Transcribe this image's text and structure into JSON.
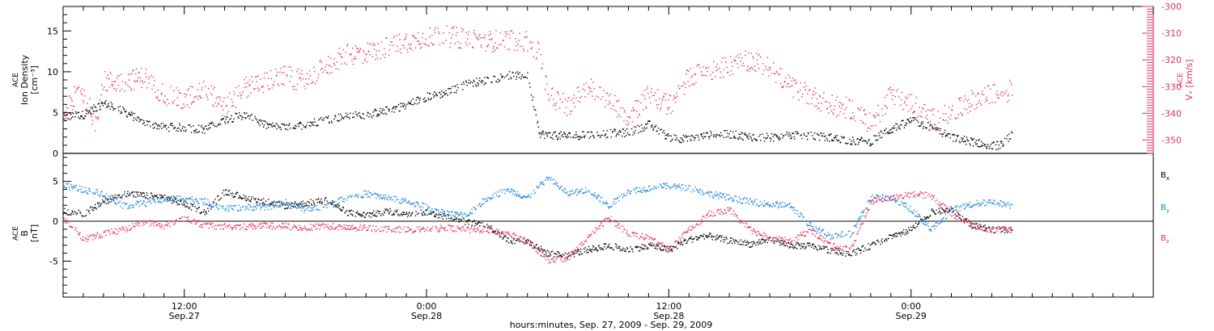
{
  "colors": {
    "black": "#000000",
    "pink": "#e8305f",
    "blue": "#1f86e0"
  },
  "x_axis": {
    "ticks": [
      {
        "hour": 12,
        "time": "12:00",
        "date": "Sep.27"
      },
      {
        "hour": 24,
        "time": "0:00",
        "date": "Sep.28"
      },
      {
        "hour": 36,
        "time": "12:00",
        "date": "Sep.28"
      },
      {
        "hour": 48,
        "time": "0:00",
        "date": "Sep.29"
      }
    ],
    "caption": "hours:minutes, Sep. 27, 2009 - Sep. 29, 2009",
    "range_hours": [
      6,
      60
    ]
  },
  "chart_data": [
    {
      "type": "scatter",
      "panel": "top",
      "ylabel_lines": [
        "ACE",
        "Ion Density",
        "[cm⁻³]"
      ],
      "ylim": [
        0,
        18
      ],
      "yticks": [
        0,
        5,
        10,
        15
      ],
      "y2label_lines": [
        "ACE",
        "Vₓ [km/s]"
      ],
      "y2lim": [
        -355,
        -300
      ],
      "y2ticks": [
        -350,
        -340,
        -330,
        -320,
        -310,
        -300
      ],
      "series": [
        {
          "name": "",
          "axis": "left",
          "color": "black",
          "points": [
            [
              6,
              4.5
            ],
            [
              7,
              4.8
            ],
            [
              8,
              6.2
            ],
            [
              9,
              5.2
            ],
            [
              10,
              3.8
            ],
            [
              11,
              3.3
            ],
            [
              12,
              3.2
            ],
            [
              13,
              3.0
            ],
            [
              14,
              4.2
            ],
            [
              15,
              4.8
            ],
            [
              16,
              3.5
            ],
            [
              17,
              3.2
            ],
            [
              18,
              3.6
            ],
            [
              19,
              4.2
            ],
            [
              20,
              4.6
            ],
            [
              21,
              4.8
            ],
            [
              22,
              5.3
            ],
            [
              23,
              6.0
            ],
            [
              24,
              7.0
            ],
            [
              25,
              7.5
            ],
            [
              26,
              8.6
            ],
            [
              27,
              9.0
            ],
            [
              28,
              9.6
            ],
            [
              29,
              9.5
            ],
            [
              29.6,
              2.5
            ],
            [
              30,
              2.3
            ],
            [
              31,
              2.2
            ],
            [
              32,
              2.3
            ],
            [
              33,
              2.5
            ],
            [
              34,
              2.6
            ],
            [
              35,
              3.6
            ],
            [
              36,
              2.0
            ],
            [
              37,
              1.8
            ],
            [
              38,
              2.3
            ],
            [
              39,
              2.4
            ],
            [
              40,
              2.1
            ],
            [
              41,
              2.0
            ],
            [
              42,
              2.3
            ],
            [
              43,
              2.2
            ],
            [
              44,
              2.0
            ],
            [
              45,
              1.6
            ],
            [
              46,
              1.5
            ],
            [
              46.5,
              2.4
            ],
            [
              47,
              3.0
            ],
            [
              48,
              4.1
            ],
            [
              49,
              3.2
            ],
            [
              50,
              2.0
            ],
            [
              51,
              1.5
            ],
            [
              52,
              1.0
            ],
            [
              52.5,
              1.1
            ],
            [
              53,
              2.5
            ]
          ]
        },
        {
          "name": "",
          "axis": "right",
          "color": "pink",
          "points": [
            [
              6,
              -341
            ],
            [
              6.8,
              -330
            ],
            [
              7.6,
              -343
            ],
            [
              8,
              -328
            ],
            [
              9,
              -328
            ],
            [
              10,
              -326
            ],
            [
              11,
              -333
            ],
            [
              12,
              -335
            ],
            [
              13,
              -330
            ],
            [
              14,
              -338
            ],
            [
              15,
              -330
            ],
            [
              16,
              -328
            ],
            [
              17,
              -326
            ],
            [
              18,
              -328
            ],
            [
              19,
              -322
            ],
            [
              20,
              -318
            ],
            [
              21,
              -317
            ],
            [
              22,
              -315
            ],
            [
              23,
              -313
            ],
            [
              24,
              -311
            ],
            [
              25,
              -311
            ],
            [
              26,
              -312
            ],
            [
              27,
              -313
            ],
            [
              28,
              -312
            ],
            [
              29,
              -313
            ],
            [
              29.6,
              -318
            ],
            [
              30,
              -333
            ],
            [
              31,
              -337
            ],
            [
              32,
              -330
            ],
            [
              33,
              -335
            ],
            [
              34,
              -341
            ],
            [
              35,
              -333
            ],
            [
              36,
              -337
            ],
            [
              37,
              -326
            ],
            [
              38,
              -324
            ],
            [
              39,
              -322
            ],
            [
              40,
              -320
            ],
            [
              41,
              -323
            ],
            [
              42,
              -330
            ],
            [
              43,
              -333
            ],
            [
              44,
              -337
            ],
            [
              45,
              -338
            ],
            [
              46,
              -344
            ],
            [
              47,
              -333
            ],
            [
              48,
              -336
            ],
            [
              49,
              -342
            ],
            [
              50,
              -340
            ],
            [
              51,
              -335
            ],
            [
              52,
              -333
            ],
            [
              53,
              -331
            ]
          ]
        }
      ]
    },
    {
      "type": "scatter",
      "panel": "bottom",
      "ylabel_lines": [
        "ACE",
        "B",
        "[nT]"
      ],
      "ylim": [
        -9.5,
        8.5
      ],
      "yticks": [
        -5,
        0,
        5
      ],
      "series": [
        {
          "name": "Bx",
          "color": "black",
          "points": [
            [
              6,
              1.3
            ],
            [
              7,
              1.0
            ],
            [
              8,
              2.5
            ],
            [
              9,
              3.5
            ],
            [
              10,
              3.3
            ],
            [
              11,
              3.0
            ],
            [
              12,
              2.2
            ],
            [
              13,
              1.2
            ],
            [
              14,
              3.8
            ],
            [
              15,
              3.0
            ],
            [
              16,
              2.5
            ],
            [
              17,
              2.0
            ],
            [
              18,
              2.3
            ],
            [
              19,
              2.8
            ],
            [
              20,
              1.2
            ],
            [
              21,
              0.8
            ],
            [
              22,
              1.3
            ],
            [
              23,
              1.0
            ],
            [
              24,
              1.2
            ],
            [
              25,
              0.6
            ],
            [
              26,
              0.0
            ],
            [
              27,
              -0.5
            ],
            [
              28,
              -2.3
            ],
            [
              29,
              -2.5
            ],
            [
              30,
              -4.0
            ],
            [
              31,
              -4.2
            ],
            [
              32,
              -3.5
            ],
            [
              33,
              -3.0
            ],
            [
              34,
              -3.5
            ],
            [
              35,
              -3.0
            ],
            [
              36,
              -3.5
            ],
            [
              37,
              -2.2
            ],
            [
              38,
              -1.8
            ],
            [
              39,
              -2.4
            ],
            [
              40,
              -2.8
            ],
            [
              41,
              -2.2
            ],
            [
              42,
              -3.0
            ],
            [
              43,
              -3.0
            ],
            [
              44,
              -3.6
            ],
            [
              45,
              -4.0
            ],
            [
              46,
              -3.0
            ],
            [
              47,
              -1.8
            ],
            [
              48,
              -1.0
            ],
            [
              49,
              1.2
            ],
            [
              50,
              1.5
            ],
            [
              51,
              -0.5
            ],
            [
              52,
              -1.0
            ],
            [
              53,
              -1.0
            ]
          ]
        },
        {
          "name": "By",
          "color": "blue",
          "points": [
            [
              6,
              4.5
            ],
            [
              7,
              4.0
            ],
            [
              8,
              3.5
            ],
            [
              9,
              2.0
            ],
            [
              10,
              2.3
            ],
            [
              11,
              2.8
            ],
            [
              12,
              3.0
            ],
            [
              13,
              2.5
            ],
            [
              14,
              1.6
            ],
            [
              15,
              1.8
            ],
            [
              16,
              1.8
            ],
            [
              17,
              2.4
            ],
            [
              18,
              1.5
            ],
            [
              19,
              2.0
            ],
            [
              20,
              3.0
            ],
            [
              21,
              3.5
            ],
            [
              22,
              3.0
            ],
            [
              23,
              2.5
            ],
            [
              24,
              1.8
            ],
            [
              25,
              1.0
            ],
            [
              26,
              0.8
            ],
            [
              27,
              3.0
            ],
            [
              28,
              4.0
            ],
            [
              29,
              3.0
            ],
            [
              30,
              5.5
            ],
            [
              31,
              3.5
            ],
            [
              32,
              4.0
            ],
            [
              33,
              2.0
            ],
            [
              34,
              3.8
            ],
            [
              35,
              4.2
            ],
            [
              36,
              4.5
            ],
            [
              37,
              4.2
            ],
            [
              38,
              3.5
            ],
            [
              39,
              3.0
            ],
            [
              40,
              2.5
            ],
            [
              41,
              2.2
            ],
            [
              42,
              2.0
            ],
            [
              43,
              -0.5
            ],
            [
              44,
              -1.8
            ],
            [
              45,
              -1.5
            ],
            [
              46,
              3.0
            ],
            [
              47,
              3.0
            ],
            [
              48,
              1.5
            ],
            [
              49,
              -1.0
            ],
            [
              50,
              1.5
            ],
            [
              51,
              2.2
            ],
            [
              52,
              2.5
            ],
            [
              53,
              2.0
            ]
          ]
        },
        {
          "name": "Bz",
          "color": "pink",
          "points": [
            [
              6,
              0.5
            ],
            [
              7,
              -2.2
            ],
            [
              8,
              -1.5
            ],
            [
              9,
              -1.0
            ],
            [
              10,
              0.0
            ],
            [
              11,
              -0.5
            ],
            [
              12,
              0.5
            ],
            [
              13,
              -0.5
            ],
            [
              14,
              -0.6
            ],
            [
              15,
              -0.6
            ],
            [
              16,
              -0.5
            ],
            [
              17,
              -0.6
            ],
            [
              18,
              -0.8
            ],
            [
              19,
              -0.5
            ],
            [
              20,
              -0.8
            ],
            [
              21,
              -0.8
            ],
            [
              22,
              -0.9
            ],
            [
              23,
              -1.0
            ],
            [
              24,
              -1.0
            ],
            [
              25,
              -0.8
            ],
            [
              26,
              -1.0
            ],
            [
              27,
              -1.0
            ],
            [
              28,
              -1.5
            ],
            [
              29,
              -2.5
            ],
            [
              30,
              -4.8
            ],
            [
              31,
              -4.5
            ],
            [
              32,
              -2.0
            ],
            [
              33,
              0.5
            ],
            [
              34,
              -1.5
            ],
            [
              35,
              -2.0
            ],
            [
              36,
              -3.5
            ],
            [
              37,
              -1.0
            ],
            [
              38,
              1.0
            ],
            [
              39,
              1.5
            ],
            [
              40,
              -1.0
            ],
            [
              41,
              -2.0
            ],
            [
              42,
              -2.5
            ],
            [
              43,
              -1.0
            ],
            [
              44,
              -3.0
            ],
            [
              45,
              -3.5
            ],
            [
              46,
              2.5
            ],
            [
              47,
              3.0
            ],
            [
              48,
              3.5
            ],
            [
              49,
              3.2
            ],
            [
              50,
              1.0
            ],
            [
              51,
              -0.5
            ],
            [
              52,
              -1.0
            ],
            [
              53,
              -1.0
            ]
          ]
        }
      ],
      "legend_labels": [
        {
          "text": "B",
          "sub": "x",
          "color": "black"
        },
        {
          "text": "B",
          "sub": "y",
          "color": "blue"
        },
        {
          "text": "B",
          "sub": "z",
          "color": "pink"
        }
      ]
    }
  ]
}
